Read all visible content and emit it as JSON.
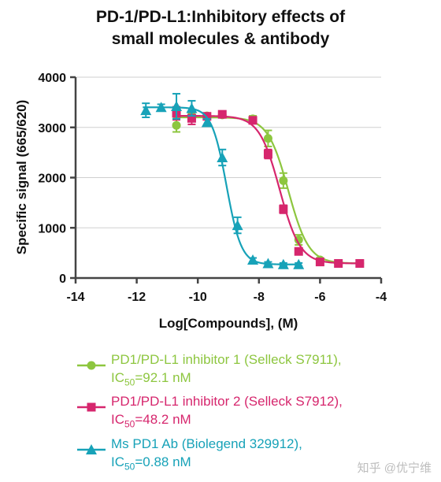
{
  "chart_data": {
    "type": "line",
    "title_lines": [
      "PD-1/PD-L1:Inhibitory effects of",
      "small molecules & antibody"
    ],
    "xlabel": "Log[Compounds], (M)",
    "ylabel": "Specific signal (665/620)",
    "xlim": [
      -14,
      -4
    ],
    "ylim": [
      0,
      4000
    ],
    "xticks": [
      -14,
      -12,
      -10,
      -8,
      -6,
      -4
    ],
    "yticks": [
      0,
      1000,
      2000,
      3000,
      4000
    ],
    "xtick_labels": [
      "-14",
      "-12",
      "-10",
      "-8",
      "-6",
      "-4"
    ],
    "ytick_labels": [
      "0",
      "1000",
      "2000",
      "3000",
      "4000"
    ],
    "grid": "horizontal",
    "legend_position": "bottom",
    "series": [
      {
        "name": "PD1/PD-L1 inhibitor 1 (Selleck S7911),",
        "ic50_label": "IC",
        "ic50_sub": "50",
        "ic50_value": "=92.1 nM",
        "color": "#8dc63f",
        "marker": "circle",
        "fit": {
          "top": 3200,
          "bottom": 290,
          "logIC50": -7.04,
          "hill": 1.3
        },
        "points": [
          {
            "x": -10.7,
            "y": 3040,
            "err": 130
          },
          {
            "x": -10.2,
            "y": 3220,
            "err": 60
          },
          {
            "x": -9.7,
            "y": 3230,
            "err": 50
          },
          {
            "x": -9.2,
            "y": 3250,
            "err": 40
          },
          {
            "x": -8.2,
            "y": 3170,
            "err": 60
          },
          {
            "x": -7.7,
            "y": 2780,
            "err": 160
          },
          {
            "x": -7.2,
            "y": 1940,
            "err": 150
          },
          {
            "x": -6.7,
            "y": 760,
            "err": 100
          },
          {
            "x": -6.0,
            "y": 360,
            "err": 40
          },
          {
            "x": -5.4,
            "y": 290,
            "err": 30
          },
          {
            "x": -4.7,
            "y": 290,
            "err": 30
          }
        ]
      },
      {
        "name": "PD1/PD-L1 inhibitor 2 (Selleck S7912),",
        "ic50_label": "IC",
        "ic50_sub": "50",
        "ic50_value": "=48.2 nM",
        "color": "#d6266d",
        "marker": "square",
        "fit": {
          "top": 3230,
          "bottom": 290,
          "logIC50": -7.32,
          "hill": 1.3
        },
        "points": [
          {
            "x": -10.7,
            "y": 3280,
            "err": 130
          },
          {
            "x": -10.2,
            "y": 3180,
            "err": 120
          },
          {
            "x": -9.7,
            "y": 3220,
            "err": 60
          },
          {
            "x": -9.2,
            "y": 3260,
            "err": 40
          },
          {
            "x": -8.2,
            "y": 3140,
            "err": 40
          },
          {
            "x": -7.7,
            "y": 2470,
            "err": 90
          },
          {
            "x": -7.2,
            "y": 1370,
            "err": 80
          },
          {
            "x": -6.7,
            "y": 530,
            "err": 50
          },
          {
            "x": -6.0,
            "y": 320,
            "err": 40
          },
          {
            "x": -5.4,
            "y": 290,
            "err": 30
          },
          {
            "x": -4.7,
            "y": 290,
            "err": 30
          }
        ]
      },
      {
        "name": "Ms PD1 Ab (Biolegend 329912),",
        "ic50_label": "IC",
        "ic50_sub": "50",
        "ic50_value": "=0.88 nM",
        "color": "#17a2b8",
        "marker": "triangle",
        "fit": {
          "top": 3400,
          "bottom": 270,
          "logIC50": -9.06,
          "hill": 1.8
        },
        "points": [
          {
            "x": -11.7,
            "y": 3340,
            "err": 140
          },
          {
            "x": -11.2,
            "y": 3400,
            "err": 60
          },
          {
            "x": -10.7,
            "y": 3420,
            "err": 250
          },
          {
            "x": -10.2,
            "y": 3380,
            "err": 150
          },
          {
            "x": -9.7,
            "y": 3100,
            "err": 70
          },
          {
            "x": -9.2,
            "y": 2400,
            "err": 160
          },
          {
            "x": -8.7,
            "y": 1050,
            "err": 160
          },
          {
            "x": -8.2,
            "y": 360,
            "err": 40
          },
          {
            "x": -7.7,
            "y": 290,
            "err": 30
          },
          {
            "x": -7.2,
            "y": 270,
            "err": 30
          },
          {
            "x": -6.7,
            "y": 270,
            "err": 30
          }
        ]
      }
    ]
  },
  "watermark": "知乎 @优宁维"
}
